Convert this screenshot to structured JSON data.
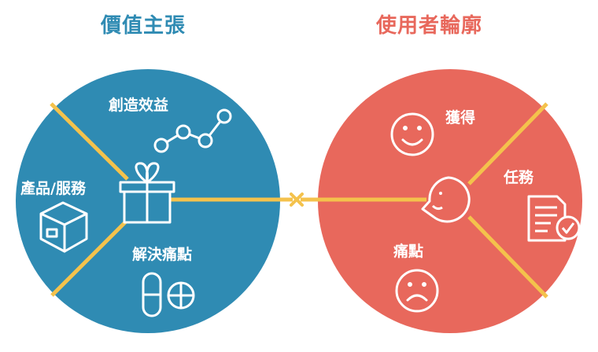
{
  "value_proposition": {
    "title": "價值主張",
    "color": "#2f8bb3",
    "segments": {
      "gain_creators": "創造效益",
      "products_services": "產品/服務",
      "pain_relievers": "解決痛點"
    }
  },
  "customer_profile": {
    "title": "使用者輪廓",
    "color": "#e8685c",
    "segments": {
      "gains": "獲得",
      "jobs": "任務",
      "pains": "痛點"
    }
  },
  "accent_color": "#f4c24c",
  "icons": [
    "line-chart-icon",
    "gift-icon",
    "box-icon",
    "pill-icon",
    "smile-icon",
    "speech-face-icon",
    "document-check-icon",
    "frown-icon",
    "cross-connector-icon"
  ]
}
